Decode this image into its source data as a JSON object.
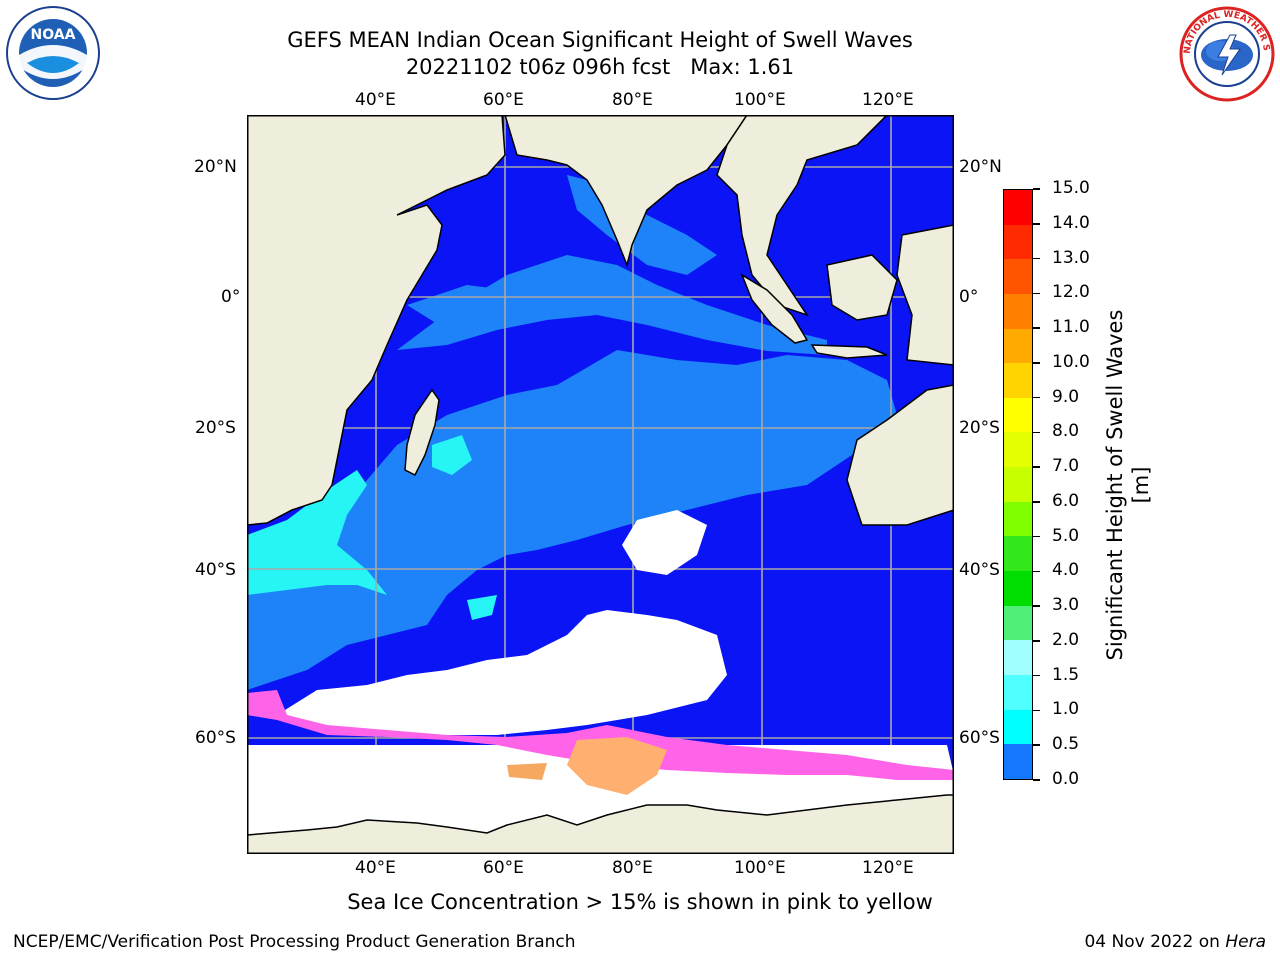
{
  "title": {
    "line1": "GEFS MEAN Indian Ocean Significant Height of Swell Waves",
    "line2": "20221102 t06z 096h fcst   Max: 1.61"
  },
  "logos": {
    "left": {
      "icon": "noaa-logo",
      "text": "NOAA"
    },
    "right": {
      "icon": "nws-logo",
      "ring_text": "NATIONAL WEATHER SERVICE"
    }
  },
  "map": {
    "lon_labels": [
      "40°E",
      "60°E",
      "80°E",
      "100°E",
      "120°E"
    ],
    "lat_labels": [
      "20°N",
      "0°",
      "20°S",
      "40°S",
      "60°S"
    ],
    "colors": {
      "land": "#efeedc",
      "ocean_low": "#0a14f5",
      "ocean_mid": "#1e82f8",
      "swell_high": "#27f5f5",
      "ice": "#ffffff",
      "ice_conc": "#ff64e8",
      "grid": "#a8a8a8"
    }
  },
  "colorbar": {
    "label": "Significant Height of Swell Waves [m]",
    "ticks": [
      "15.0",
      "14.0",
      "13.0",
      "12.0",
      "11.0",
      "10.0",
      "9.0",
      "8.0",
      "7.0",
      "6.0",
      "5.0",
      "4.0",
      "3.0",
      "2.0",
      "1.5",
      "1.0",
      "0.5",
      "0.0"
    ],
    "colors": [
      "#ff0000",
      "#ff2a00",
      "#ff5500",
      "#ff7f00",
      "#ffaa00",
      "#ffd400",
      "#ffff00",
      "#e4ff00",
      "#c8ff00",
      "#7fff00",
      "#32e81a",
      "#00dd00",
      "#50f078",
      "#a0ffff",
      "#50ffff",
      "#00ffff",
      "#1478ff",
      "#0000ff"
    ]
  },
  "note": "Sea Ice Concentration > 15% is shown in pink to yellow",
  "footer": {
    "left": "NCEP/EMC/Verification Post Processing Product Generation Branch",
    "right_date": "04 Nov 2022 on ",
    "right_host": "Hera"
  }
}
